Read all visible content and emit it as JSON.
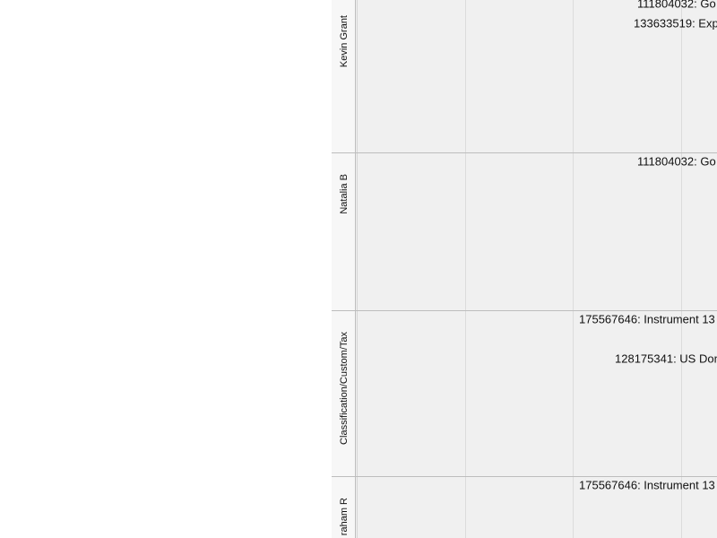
{
  "lanes": [
    {
      "label": "Kevin Grant",
      "items": [
        "111804032: Go",
        "133633519: Exp"
      ]
    },
    {
      "label": "Natalia B",
      "items": [
        "111804032: Go"
      ]
    },
    {
      "label": "Classification/Custom/Tax",
      "items": [
        "175567646: Instrument 13",
        "128175341: US Dom"
      ]
    },
    {
      "label": "raham R",
      "items": [
        "175567646: Instrument 13"
      ]
    }
  ]
}
